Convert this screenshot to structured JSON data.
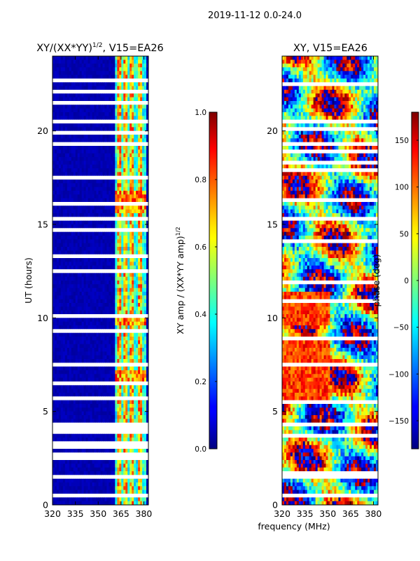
{
  "figure": {
    "suptitle": "2019-11-12 0.0-24.0",
    "shared_xlabel": "frequency (MHz)"
  },
  "chart_data": [
    {
      "type": "heatmap",
      "title_prefix": "XY/(XX*YY)",
      "title_exp": "1/2",
      "title_suffix": ", V15=EA26",
      "xlabel": "",
      "ylabel": "UT (hours)",
      "xlim": [
        320,
        383
      ],
      "ylim": [
        0,
        24
      ],
      "xticks": [
        320,
        335,
        350,
        365,
        380
      ],
      "yticks": [
        0,
        5,
        10,
        15,
        20
      ],
      "colorbar": {
        "label_prefix": "XY amp / (XX*YY amp)",
        "label_exp": "1/2",
        "range": [
          0.0,
          1.0
        ],
        "ticks": [
          "0.0",
          "0.2",
          "0.4",
          "0.6",
          "0.8",
          "1.0"
        ],
        "colormap": "jet"
      },
      "bright_band_mhz": [
        361,
        382
      ],
      "bright_channels_mhz": [
        364,
        368,
        372,
        378
      ],
      "blank_rows_ut": [
        0.2,
        0.55,
        1.45,
        1.6,
        2.5,
        2.7,
        3.1,
        3.3,
        3.6,
        3.9,
        4.1,
        4.3,
        4.6,
        5.0,
        5.4,
        5.7,
        6.5,
        7.2,
        7.5,
        8.2,
        8.4,
        8.8,
        9.3,
        10.1,
        10.4,
        10.8,
        11.2,
        11.6,
        12.0,
        12.5,
        13.3,
        13.6,
        14.2,
        14.7,
        15.3,
        15.6,
        16.1,
        17.0,
        17.5,
        17.8,
        18.2,
        18.8,
        19.0,
        19.3,
        19.6,
        19.9,
        20.2,
        20.5,
        21.5,
        21.8,
        22.1,
        22.7,
        23.4
      ]
    },
    {
      "type": "heatmap",
      "title": "XY, V15=EA26",
      "xlabel": "frequency (MHz)",
      "ylabel": "",
      "xlim": [
        320,
        383
      ],
      "ylim": [
        0,
        24
      ],
      "xticks": [
        320,
        335,
        350,
        365,
        380
      ],
      "yticks": [
        0,
        5,
        10,
        15,
        20
      ],
      "colorbar": {
        "label": "phase (deg)",
        "range": [
          -180,
          180
        ],
        "ticks": [
          "−150",
          "−100",
          "−50",
          "0",
          "50",
          "100",
          "150"
        ],
        "colormap": "jet"
      },
      "blank_rows_ut": [
        0.2,
        0.45,
        1.45,
        1.7,
        2.6,
        3.2,
        3.7,
        4.3,
        5.0,
        5.5,
        6.2,
        7.5,
        8.4,
        8.9,
        9.4,
        10.4,
        10.9,
        11.4,
        11.9,
        12.4,
        13.4,
        14.1,
        15.3,
        15.8,
        16.3,
        17.0,
        17.9,
        18.3,
        18.9,
        19.3,
        19.8,
        20.1,
        20.5,
        21.2,
        21.8,
        22.5,
        23.2
      ]
    }
  ]
}
